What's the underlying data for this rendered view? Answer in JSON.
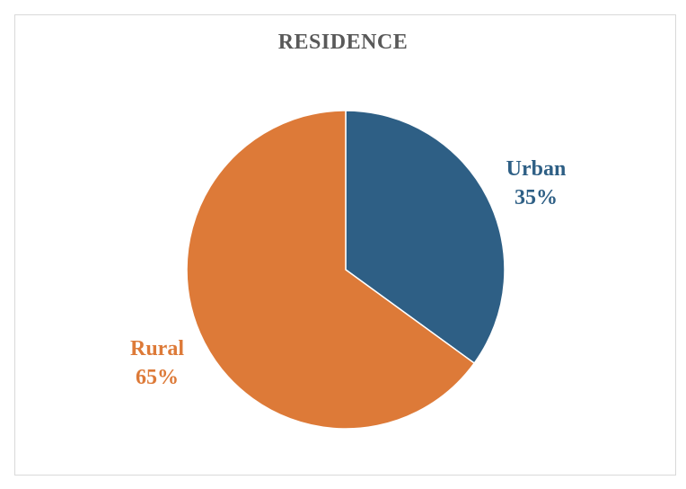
{
  "chart_data": {
    "type": "pie",
    "title": "RESIDENCE",
    "categories": [
      "Urban",
      "Rural"
    ],
    "values": [
      35,
      65
    ],
    "labels": [
      "Urban",
      "Rural"
    ],
    "value_labels": [
      "35%",
      "65%"
    ],
    "colors": [
      "#2e5f85",
      "#dd7a38"
    ],
    "start_angle_deg": 0,
    "direction": "clockwise"
  }
}
